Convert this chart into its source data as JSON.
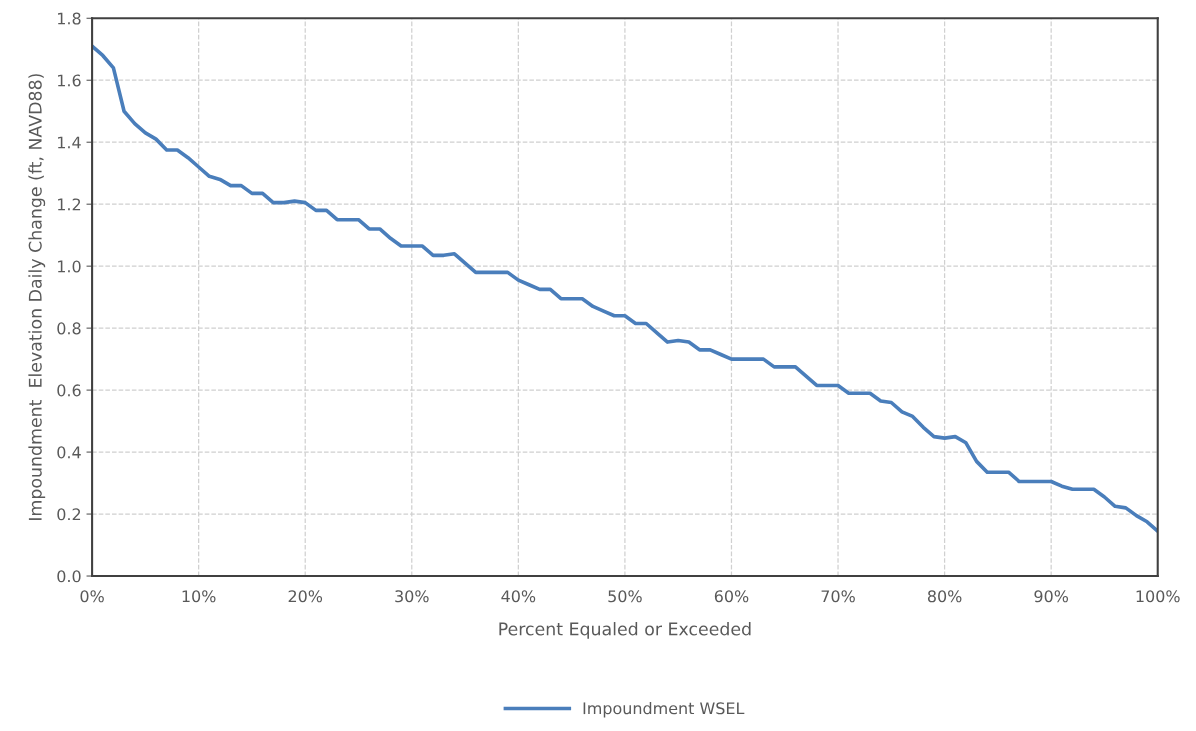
{
  "chart_data": {
    "type": "line",
    "xlabel": "Percent Equaled or Exceeded",
    "ylabel": "Impoundment  Elevation Daily Change (ft, NAVD88)",
    "x": [
      0,
      1,
      2,
      3,
      4,
      5,
      6,
      7,
      8,
      9,
      10,
      11,
      12,
      13,
      14,
      15,
      16,
      17,
      18,
      19,
      20,
      21,
      22,
      23,
      24,
      25,
      26,
      27,
      28,
      29,
      30,
      31,
      32,
      33,
      34,
      35,
      36,
      37,
      38,
      39,
      40,
      41,
      42,
      43,
      44,
      45,
      46,
      47,
      48,
      49,
      50,
      51,
      52,
      53,
      54,
      55,
      56,
      57,
      58,
      59,
      60,
      61,
      62,
      63,
      64,
      65,
      66,
      67,
      68,
      69,
      70,
      71,
      72,
      73,
      74,
      75,
      76,
      77,
      78,
      79,
      80,
      81,
      82,
      83,
      84,
      85,
      86,
      87,
      88,
      89,
      90,
      91,
      92,
      93,
      94,
      95,
      96,
      97,
      98,
      99,
      100
    ],
    "series": [
      {
        "name": "Impoundment WSEL",
        "color": "#4a7ebb",
        "values": [
          1.71,
          1.68,
          1.64,
          1.5,
          1.46,
          1.43,
          1.41,
          1.375,
          1.375,
          1.35,
          1.32,
          1.29,
          1.28,
          1.26,
          1.26,
          1.235,
          1.235,
          1.205,
          1.205,
          1.21,
          1.205,
          1.18,
          1.18,
          1.15,
          1.15,
          1.15,
          1.12,
          1.12,
          1.09,
          1.065,
          1.065,
          1.065,
          1.035,
          1.035,
          1.04,
          1.01,
          0.98,
          0.98,
          0.98,
          0.98,
          0.955,
          0.94,
          0.925,
          0.925,
          0.895,
          0.895,
          0.895,
          0.87,
          0.855,
          0.84,
          0.84,
          0.815,
          0.815,
          0.785,
          0.755,
          0.76,
          0.755,
          0.73,
          0.73,
          0.715,
          0.7,
          0.7,
          0.7,
          0.7,
          0.675,
          0.675,
          0.675,
          0.645,
          0.615,
          0.615,
          0.615,
          0.59,
          0.59,
          0.59,
          0.565,
          0.56,
          0.53,
          0.515,
          0.48,
          0.45,
          0.445,
          0.45,
          0.43,
          0.37,
          0.335,
          0.335,
          0.335,
          0.305,
          0.305,
          0.305,
          0.305,
          0.29,
          0.28,
          0.28,
          0.28,
          0.255,
          0.225,
          0.22,
          0.195,
          0.175,
          0.145
        ]
      }
    ],
    "xlim": [
      0,
      100
    ],
    "xticks": [
      {
        "value": 0,
        "label": "0%"
      },
      {
        "value": 10,
        "label": "10%"
      },
      {
        "value": 20,
        "label": "20%"
      },
      {
        "value": 30,
        "label": "30%"
      },
      {
        "value": 40,
        "label": "40%"
      },
      {
        "value": 50,
        "label": "50%"
      },
      {
        "value": 60,
        "label": "60%"
      },
      {
        "value": 70,
        "label": "70%"
      },
      {
        "value": 80,
        "label": "80%"
      },
      {
        "value": 90,
        "label": "90%"
      },
      {
        "value": 100,
        "label": "100%"
      }
    ],
    "ylim": [
      0,
      1.8
    ],
    "yticks": [
      {
        "value": 0,
        "label": "0.0"
      },
      {
        "value": 0.2,
        "label": "0.2"
      },
      {
        "value": 0.4,
        "label": "0.4"
      },
      {
        "value": 0.6,
        "label": "0.6"
      },
      {
        "value": 0.8,
        "label": "0.8"
      },
      {
        "value": 1.0,
        "label": "1.0"
      },
      {
        "value": 1.2,
        "label": "1.2"
      },
      {
        "value": 1.4,
        "label": "1.4"
      },
      {
        "value": 1.6,
        "label": "1.6"
      },
      {
        "value": 1.8,
        "label": "1.8"
      }
    ],
    "grid": true,
    "legend": "bottom",
    "line_style": "solid",
    "marker": "none"
  }
}
